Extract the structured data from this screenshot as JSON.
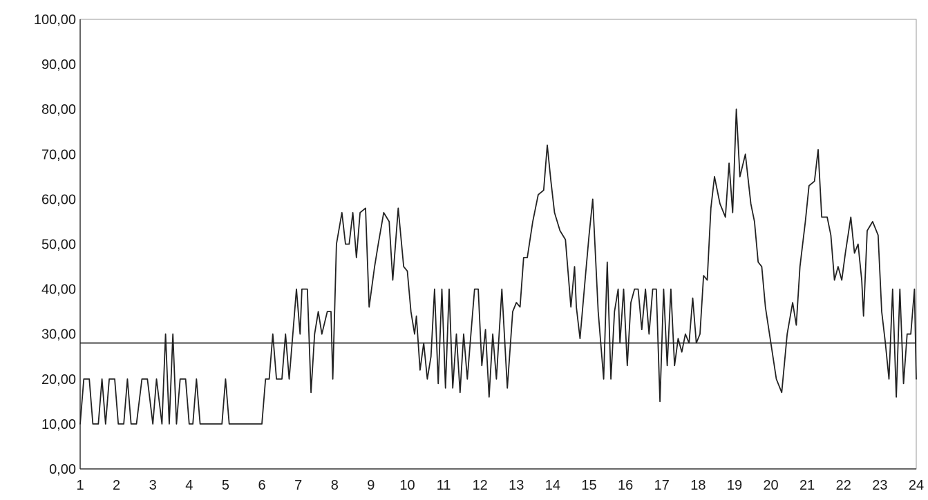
{
  "chart_data": {
    "type": "line",
    "title": "",
    "xlabel": "",
    "ylabel": "",
    "x_ticks": [
      "1",
      "2",
      "3",
      "4",
      "5",
      "6",
      "7",
      "8",
      "9",
      "10",
      "11",
      "12",
      "13",
      "14",
      "15",
      "16",
      "17",
      "18",
      "19",
      "20",
      "21",
      "22",
      "23",
      "24"
    ],
    "y_ticks": [
      "0,00",
      "10,00",
      "20,00",
      "30,00",
      "40,00",
      "50,00",
      "60,00",
      "70,00",
      "80,00",
      "90,00",
      "100,00"
    ],
    "xlim": [
      1,
      24
    ],
    "ylim": [
      0,
      100
    ],
    "grid": false,
    "line_color": "#222222",
    "series": [
      {
        "points": [
          [
            1.0,
            10
          ],
          [
            1.1,
            20
          ],
          [
            1.25,
            20
          ],
          [
            1.35,
            10
          ],
          [
            1.5,
            10
          ],
          [
            1.6,
            20
          ],
          [
            1.7,
            10
          ],
          [
            1.8,
            20
          ],
          [
            1.95,
            20
          ],
          [
            2.05,
            10
          ],
          [
            2.2,
            10
          ],
          [
            2.3,
            20
          ],
          [
            2.4,
            10
          ],
          [
            2.55,
            10
          ],
          [
            2.7,
            20
          ],
          [
            2.85,
            20
          ],
          [
            3.0,
            10
          ],
          [
            3.1,
            20
          ],
          [
            3.25,
            10
          ],
          [
            3.35,
            30
          ],
          [
            3.45,
            10
          ],
          [
            3.55,
            30
          ],
          [
            3.65,
            10
          ],
          [
            3.75,
            20
          ],
          [
            3.9,
            20
          ],
          [
            4.0,
            10
          ],
          [
            4.1,
            10
          ],
          [
            4.2,
            20
          ],
          [
            4.3,
            10
          ],
          [
            4.9,
            10
          ],
          [
            5.0,
            20
          ],
          [
            5.1,
            10
          ],
          [
            6.0,
            10
          ],
          [
            6.1,
            20
          ],
          [
            6.2,
            20
          ],
          [
            6.3,
            30
          ],
          [
            6.4,
            20
          ],
          [
            6.55,
            20
          ],
          [
            6.65,
            30
          ],
          [
            6.75,
            20
          ],
          [
            6.85,
            30
          ],
          [
            6.95,
            40
          ],
          [
            7.05,
            30
          ],
          [
            7.1,
            40
          ],
          [
            7.25,
            40
          ],
          [
            7.35,
            17
          ],
          [
            7.45,
            30
          ],
          [
            7.55,
            35
          ],
          [
            7.65,
            30
          ],
          [
            7.8,
            35
          ],
          [
            7.9,
            35
          ],
          [
            7.95,
            20
          ],
          [
            8.05,
            50
          ],
          [
            8.2,
            57
          ],
          [
            8.3,
            50
          ],
          [
            8.4,
            50
          ],
          [
            8.5,
            57
          ],
          [
            8.6,
            47
          ],
          [
            8.7,
            57
          ],
          [
            8.85,
            58
          ],
          [
            8.95,
            36
          ],
          [
            9.1,
            45
          ],
          [
            9.2,
            50
          ],
          [
            9.35,
            57
          ],
          [
            9.5,
            55
          ],
          [
            9.6,
            42
          ],
          [
            9.75,
            58
          ],
          [
            9.9,
            45
          ],
          [
            10.0,
            44
          ],
          [
            10.1,
            35
          ],
          [
            10.2,
            30
          ],
          [
            10.25,
            34
          ],
          [
            10.35,
            22
          ],
          [
            10.45,
            28
          ],
          [
            10.55,
            20
          ],
          [
            10.65,
            25
          ],
          [
            10.75,
            40
          ],
          [
            10.85,
            19
          ],
          [
            10.95,
            40
          ],
          [
            11.05,
            18
          ],
          [
            11.15,
            40
          ],
          [
            11.25,
            18
          ],
          [
            11.35,
            30
          ],
          [
            11.45,
            17
          ],
          [
            11.55,
            30
          ],
          [
            11.65,
            20
          ],
          [
            11.75,
            30
          ],
          [
            11.85,
            40
          ],
          [
            11.95,
            40
          ],
          [
            12.05,
            23
          ],
          [
            12.15,
            31
          ],
          [
            12.25,
            16
          ],
          [
            12.35,
            30
          ],
          [
            12.45,
            20
          ],
          [
            12.6,
            40
          ],
          [
            12.75,
            18
          ],
          [
            12.9,
            35
          ],
          [
            13.0,
            37
          ],
          [
            13.1,
            36
          ],
          [
            13.2,
            47
          ],
          [
            13.3,
            47
          ],
          [
            13.45,
            55
          ],
          [
            13.6,
            61
          ],
          [
            13.75,
            62
          ],
          [
            13.85,
            72
          ],
          [
            13.95,
            64
          ],
          [
            14.05,
            57
          ],
          [
            14.2,
            53
          ],
          [
            14.35,
            51
          ],
          [
            14.5,
            36
          ],
          [
            14.6,
            45
          ],
          [
            14.65,
            36
          ],
          [
            14.75,
            29
          ],
          [
            14.9,
            43
          ],
          [
            15.0,
            52
          ],
          [
            15.1,
            60
          ],
          [
            15.25,
            35
          ],
          [
            15.4,
            20
          ],
          [
            15.5,
            46
          ],
          [
            15.6,
            20
          ],
          [
            15.7,
            35
          ],
          [
            15.8,
            40
          ],
          [
            15.85,
            28
          ],
          [
            15.95,
            40
          ],
          [
            16.05,
            23
          ],
          [
            16.15,
            37
          ],
          [
            16.25,
            40
          ],
          [
            16.35,
            40
          ],
          [
            16.45,
            31
          ],
          [
            16.55,
            40
          ],
          [
            16.65,
            30
          ],
          [
            16.75,
            40
          ],
          [
            16.85,
            40
          ],
          [
            16.95,
            15
          ],
          [
            17.05,
            40
          ],
          [
            17.15,
            23
          ],
          [
            17.25,
            40
          ],
          [
            17.35,
            23
          ],
          [
            17.45,
            29
          ],
          [
            17.55,
            26
          ],
          [
            17.65,
            30
          ],
          [
            17.75,
            28
          ],
          [
            17.85,
            38
          ],
          [
            17.95,
            28
          ],
          [
            18.05,
            30
          ],
          [
            18.15,
            43
          ],
          [
            18.25,
            42
          ],
          [
            18.35,
            58
          ],
          [
            18.45,
            65
          ],
          [
            18.6,
            59
          ],
          [
            18.75,
            56
          ],
          [
            18.85,
            68
          ],
          [
            18.95,
            57
          ],
          [
            19.05,
            80
          ],
          [
            19.15,
            65
          ],
          [
            19.3,
            70
          ],
          [
            19.45,
            59
          ],
          [
            19.55,
            55
          ],
          [
            19.65,
            46
          ],
          [
            19.75,
            45
          ],
          [
            19.85,
            36
          ],
          [
            20.0,
            28
          ],
          [
            20.15,
            20
          ],
          [
            20.3,
            17
          ],
          [
            20.45,
            30
          ],
          [
            20.6,
            37
          ],
          [
            20.7,
            32
          ],
          [
            20.8,
            45
          ],
          [
            20.95,
            55
          ],
          [
            21.05,
            63
          ],
          [
            21.2,
            64
          ],
          [
            21.3,
            71
          ],
          [
            21.4,
            56
          ],
          [
            21.55,
            56
          ],
          [
            21.65,
            52
          ],
          [
            21.75,
            42
          ],
          [
            21.85,
            45
          ],
          [
            21.95,
            42
          ],
          [
            22.05,
            48
          ],
          [
            22.2,
            56
          ],
          [
            22.3,
            48
          ],
          [
            22.4,
            50
          ],
          [
            22.5,
            42
          ],
          [
            22.55,
            34
          ],
          [
            22.65,
            53
          ],
          [
            22.8,
            55
          ],
          [
            22.95,
            52
          ],
          [
            23.05,
            35
          ],
          [
            23.15,
            28
          ],
          [
            23.25,
            20
          ],
          [
            23.35,
            40
          ],
          [
            23.45,
            16
          ],
          [
            23.55,
            40
          ],
          [
            23.65,
            19
          ],
          [
            23.75,
            30
          ],
          [
            23.85,
            30
          ],
          [
            23.95,
            40
          ],
          [
            24.0,
            20
          ]
        ]
      }
    ],
    "reference_line": {
      "y": 28,
      "color": "#222222"
    }
  }
}
